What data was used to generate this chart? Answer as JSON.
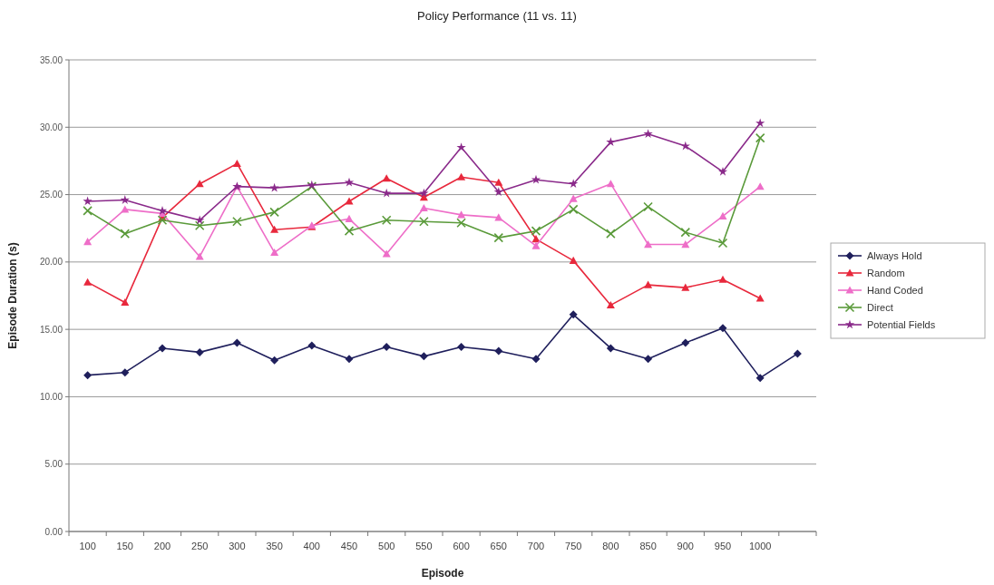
{
  "chart_data": {
    "type": "line",
    "title": "Policy Performance (11 vs. 11)",
    "xlabel": "Episode",
    "ylabel": "Episode Duration (s)",
    "categories": [
      "100",
      "150",
      "200",
      "250",
      "300",
      "350",
      "400",
      "450",
      "500",
      "550",
      "600",
      "650",
      "700",
      "750",
      "800",
      "850",
      "900",
      "950",
      "1000",
      null
    ],
    "ylim": [
      0,
      35
    ],
    "yticks": [
      {
        "value": 0,
        "label": "0.00"
      },
      {
        "value": 5,
        "label": "5.00"
      },
      {
        "value": 10,
        "label": "10.00"
      },
      {
        "value": 15,
        "label": "15.00"
      },
      {
        "value": 20,
        "label": "20.00"
      },
      {
        "value": 25,
        "label": "25.00"
      },
      {
        "value": 30,
        "label": "30.00"
      },
      {
        "value": 35,
        "label": "35.00"
      }
    ],
    "grid": "y",
    "legend": "right",
    "series": [
      {
        "name": "Always Hold",
        "color": "#1f1f5c",
        "marker": "diamond",
        "values": [
          11.6,
          11.8,
          13.6,
          13.3,
          14.0,
          12.7,
          13.8,
          12.8,
          13.7,
          13.0,
          13.7,
          13.4,
          12.8,
          16.1,
          13.6,
          12.8,
          14.0,
          15.1,
          11.4,
          13.2
        ]
      },
      {
        "name": "Random",
        "color": "#e8283c",
        "marker": "triangle",
        "values": [
          18.5,
          17.0,
          23.3,
          25.8,
          27.3,
          22.4,
          22.6,
          24.5,
          26.2,
          24.8,
          26.3,
          25.9,
          21.7,
          20.1,
          16.8,
          18.3,
          18.1,
          18.7,
          17.3,
          null
        ]
      },
      {
        "name": "Hand Coded",
        "color": "#ee6ec8",
        "marker": "triangle",
        "values": [
          21.5,
          23.9,
          23.6,
          20.4,
          25.6,
          20.7,
          22.7,
          23.2,
          20.6,
          24.0,
          23.5,
          23.3,
          21.2,
          24.7,
          25.8,
          21.3,
          21.3,
          23.4,
          25.6,
          null
        ]
      },
      {
        "name": "Direct",
        "color": "#5a9a3a",
        "marker": "cross",
        "values": [
          23.8,
          22.1,
          23.1,
          22.7,
          23.0,
          23.7,
          25.6,
          22.3,
          23.1,
          23.0,
          22.9,
          21.8,
          22.3,
          23.9,
          22.1,
          24.1,
          22.2,
          21.4,
          29.2,
          null
        ]
      },
      {
        "name": "Potential Fields",
        "color": "#8a2a8a",
        "marker": "star",
        "values": [
          24.5,
          24.6,
          23.8,
          23.1,
          25.6,
          25.5,
          25.7,
          25.9,
          25.1,
          25.1,
          28.5,
          25.2,
          26.1,
          25.8,
          28.9,
          29.5,
          28.6,
          26.7,
          30.3,
          null
        ]
      }
    ]
  }
}
